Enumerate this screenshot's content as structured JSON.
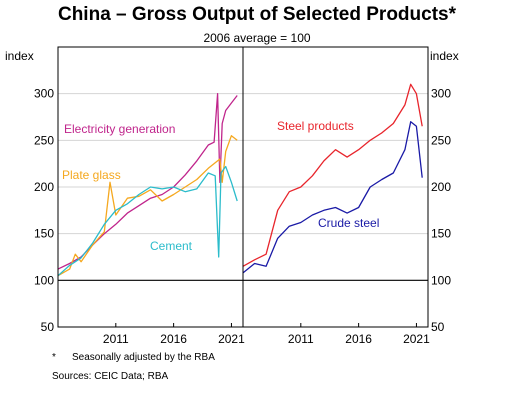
{
  "chart_data": {
    "type": "line",
    "title": "China – Gross Output of Selected Products*",
    "subtitle": "2006 average = 100",
    "footnote_marker": "*",
    "footnote": "Seasonally adjusted by the RBA",
    "sources": "Sources: CEIC Data; RBA",
    "ylabel_left": "index",
    "ylabel_right": "index",
    "ylim": [
      50,
      350
    ],
    "yticks": [
      50,
      100,
      150,
      200,
      250,
      300
    ],
    "xlim": [
      2006.0,
      2022.0
    ],
    "xticks": [
      2011,
      2016,
      2021
    ],
    "reference_line": 100,
    "panels": [
      {
        "id": "left",
        "series": [
          {
            "name": "Electricity generation",
            "color": "#c0258c",
            "x": [
              2006.0,
              2007.0,
              2008.0,
              2009.0,
              2010.0,
              2011.0,
              2012.0,
              2013.0,
              2014.0,
              2015.0,
              2016.0,
              2017.0,
              2018.0,
              2019.0,
              2019.5,
              2019.8,
              2020.0,
              2020.2,
              2020.5,
              2021.0,
              2021.5
            ],
            "y": [
              112,
              118,
              125,
              138,
              150,
              160,
              172,
              180,
              188,
              192,
              200,
              213,
              228,
              245,
              248,
              300,
              205,
              268,
              282,
              290,
              298
            ]
          },
          {
            "name": "Plate glass",
            "color": "#f5a81f",
            "x": [
              2006.0,
              2007.0,
              2007.5,
              2008.0,
              2009.0,
              2010.0,
              2010.5,
              2011.0,
              2012.0,
              2013.0,
              2014.0,
              2015.0,
              2016.0,
              2017.0,
              2018.0,
              2019.0,
              2020.0,
              2020.2,
              2020.5,
              2021.0,
              2021.5
            ],
            "y": [
              105,
              112,
              128,
              120,
              138,
              152,
              205,
              170,
              188,
              190,
              197,
              185,
              192,
              200,
              208,
              220,
              230,
              205,
              238,
              255,
              250
            ]
          },
          {
            "name": "Cement",
            "color": "#2bbccb",
            "x": [
              2006.0,
              2007.0,
              2008.0,
              2009.0,
              2010.0,
              2011.0,
              2012.0,
              2013.0,
              2014.0,
              2015.0,
              2016.0,
              2017.0,
              2018.0,
              2019.0,
              2019.6,
              2019.9,
              2020.1,
              2020.5,
              2021.0,
              2021.5
            ],
            "y": [
              105,
              116,
              124,
              140,
              160,
              175,
              182,
              192,
              200,
              198,
              200,
              195,
              198,
              215,
              212,
              125,
              215,
              222,
              205,
              185
            ]
          }
        ]
      },
      {
        "id": "right",
        "series": [
          {
            "name": "Steel products",
            "color": "#e8252c",
            "x": [
              2006.0,
              2007.0,
              2008.0,
              2009.0,
              2010.0,
              2011.0,
              2012.0,
              2013.0,
              2014.0,
              2015.0,
              2016.0,
              2017.0,
              2018.0,
              2019.0,
              2020.0,
              2020.5,
              2021.0,
              2021.5
            ],
            "y": [
              115,
              122,
              128,
              175,
              195,
              200,
              212,
              228,
              240,
              232,
              240,
              250,
              258,
              268,
              288,
              310,
              300,
              265
            ]
          },
          {
            "name": "Crude steel",
            "color": "#1a1aa6",
            "x": [
              2006.0,
              2007.0,
              2008.0,
              2009.0,
              2010.0,
              2011.0,
              2012.0,
              2013.0,
              2014.0,
              2015.0,
              2016.0,
              2017.0,
              2018.0,
              2019.0,
              2020.0,
              2020.5,
              2021.0,
              2021.5
            ],
            "y": [
              108,
              118,
              115,
              145,
              158,
              162,
              170,
              175,
              178,
              172,
              178,
              200,
              208,
              215,
              240,
              270,
              265,
              210
            ]
          }
        ]
      }
    ]
  }
}
